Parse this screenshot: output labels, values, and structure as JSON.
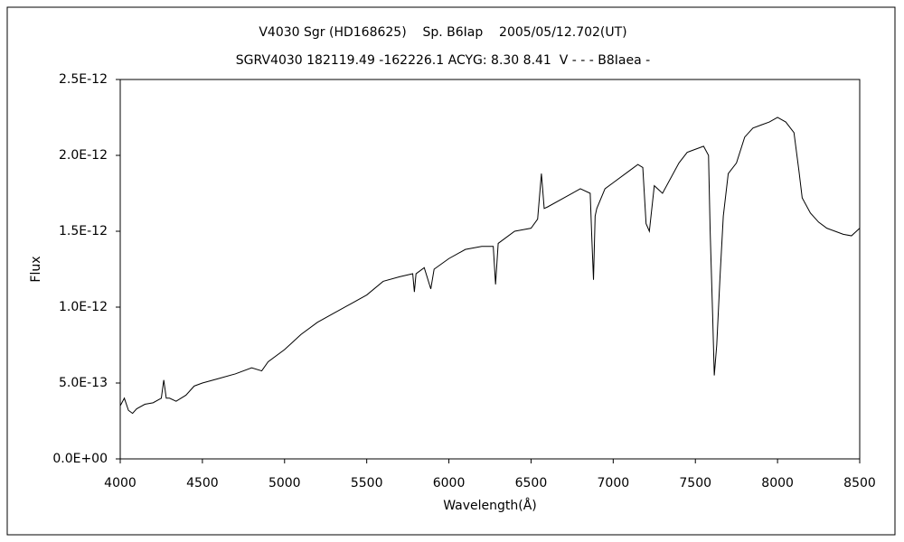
{
  "chart_data": {
    "type": "line",
    "title": "V4030 Sgr (HD168625)    Sp. B6Iap    2005/05/12.702(UT)",
    "subtitle": "SGRV4030 182119.49 -162226.1 ACYG: 8.30 8.41  V - - - B8Iaea -",
    "xlabel": "Wavelength(Å)",
    "ylabel": "Flux",
    "xlim": [
      4000,
      8500
    ],
    "xticks": [
      4000,
      4500,
      5000,
      5500,
      6000,
      6500,
      7000,
      7500,
      8000,
      8500
    ],
    "ylim": [
      0,
      2.5e-12
    ],
    "yticks": [
      {
        "value": 0,
        "label": "0.0E+00"
      },
      {
        "value": 5e-13,
        "label": "5.0E-13"
      },
      {
        "value": 1e-12,
        "label": "1.0E-12"
      },
      {
        "value": 1.5e-12,
        "label": "1.5E-12"
      },
      {
        "value": 2e-12,
        "label": "2.0E-12"
      },
      {
        "value": 2.5e-12,
        "label": "2.5E-12"
      }
    ],
    "color": "#000000",
    "x": [
      4000,
      4025,
      4050,
      4075,
      4100,
      4150,
      4200,
      4250,
      4265,
      4280,
      4300,
      4340,
      4400,
      4450,
      4500,
      4600,
      4700,
      4800,
      4861,
      4900,
      5000,
      5100,
      5200,
      5300,
      5400,
      5500,
      5600,
      5700,
      5780,
      5790,
      5800,
      5850,
      5890,
      5910,
      6000,
      6100,
      6200,
      6270,
      6284,
      6300,
      6400,
      6500,
      6540,
      6563,
      6580,
      6600,
      6700,
      6800,
      6860,
      6870,
      6880,
      6890,
      6900,
      6950,
      7000,
      7100,
      7150,
      7180,
      7200,
      7220,
      7250,
      7300,
      7400,
      7450,
      7500,
      7550,
      7580,
      7590,
      7605,
      7615,
      7630,
      7650,
      7670,
      7700,
      7750,
      7800,
      7850,
      7900,
      7950,
      8000,
      8050,
      8100,
      8130,
      8150,
      8200,
      8250,
      8300,
      8350,
      8400,
      8450,
      8500
    ],
    "values": [
      3.5e-13,
      4e-13,
      3.2e-13,
      3e-13,
      3.3e-13,
      3.6e-13,
      3.7e-13,
      4e-13,
      5.2e-13,
      4e-13,
      4e-13,
      3.8e-13,
      4.2e-13,
      4.8e-13,
      5e-13,
      5.3e-13,
      5.6e-13,
      6e-13,
      5.8e-13,
      6.4e-13,
      7.2e-13,
      8.2e-13,
      9e-13,
      9.6e-13,
      1.02e-12,
      1.08e-12,
      1.17e-12,
      1.2e-12,
      1.22e-12,
      1.1e-12,
      1.22e-12,
      1.26e-12,
      1.12e-12,
      1.25e-12,
      1.32e-12,
      1.38e-12,
      1.4e-12,
      1.4e-12,
      1.15e-12,
      1.42e-12,
      1.5e-12,
      1.52e-12,
      1.58e-12,
      1.88e-12,
      1.65e-12,
      1.66e-12,
      1.72e-12,
      1.78e-12,
      1.75e-12,
      1.45e-12,
      1.18e-12,
      1.6e-12,
      1.65e-12,
      1.78e-12,
      1.82e-12,
      1.9e-12,
      1.94e-12,
      1.92e-12,
      1.55e-12,
      1.5e-12,
      1.8e-12,
      1.75e-12,
      1.95e-12,
      2.02e-12,
      2.04e-12,
      2.06e-12,
      2e-12,
      1.5e-12,
      9.5e-13,
      5.5e-13,
      7.5e-13,
      1.2e-12,
      1.6e-12,
      1.88e-12,
      1.95e-12,
      2.12e-12,
      2.18e-12,
      2.2e-12,
      2.22e-12,
      2.25e-12,
      2.22e-12,
      2.15e-12,
      1.9e-12,
      1.72e-12,
      1.62e-12,
      1.56e-12,
      1.52e-12,
      1.5e-12,
      1.48e-12,
      1.47e-12,
      1.52e-12
    ]
  }
}
